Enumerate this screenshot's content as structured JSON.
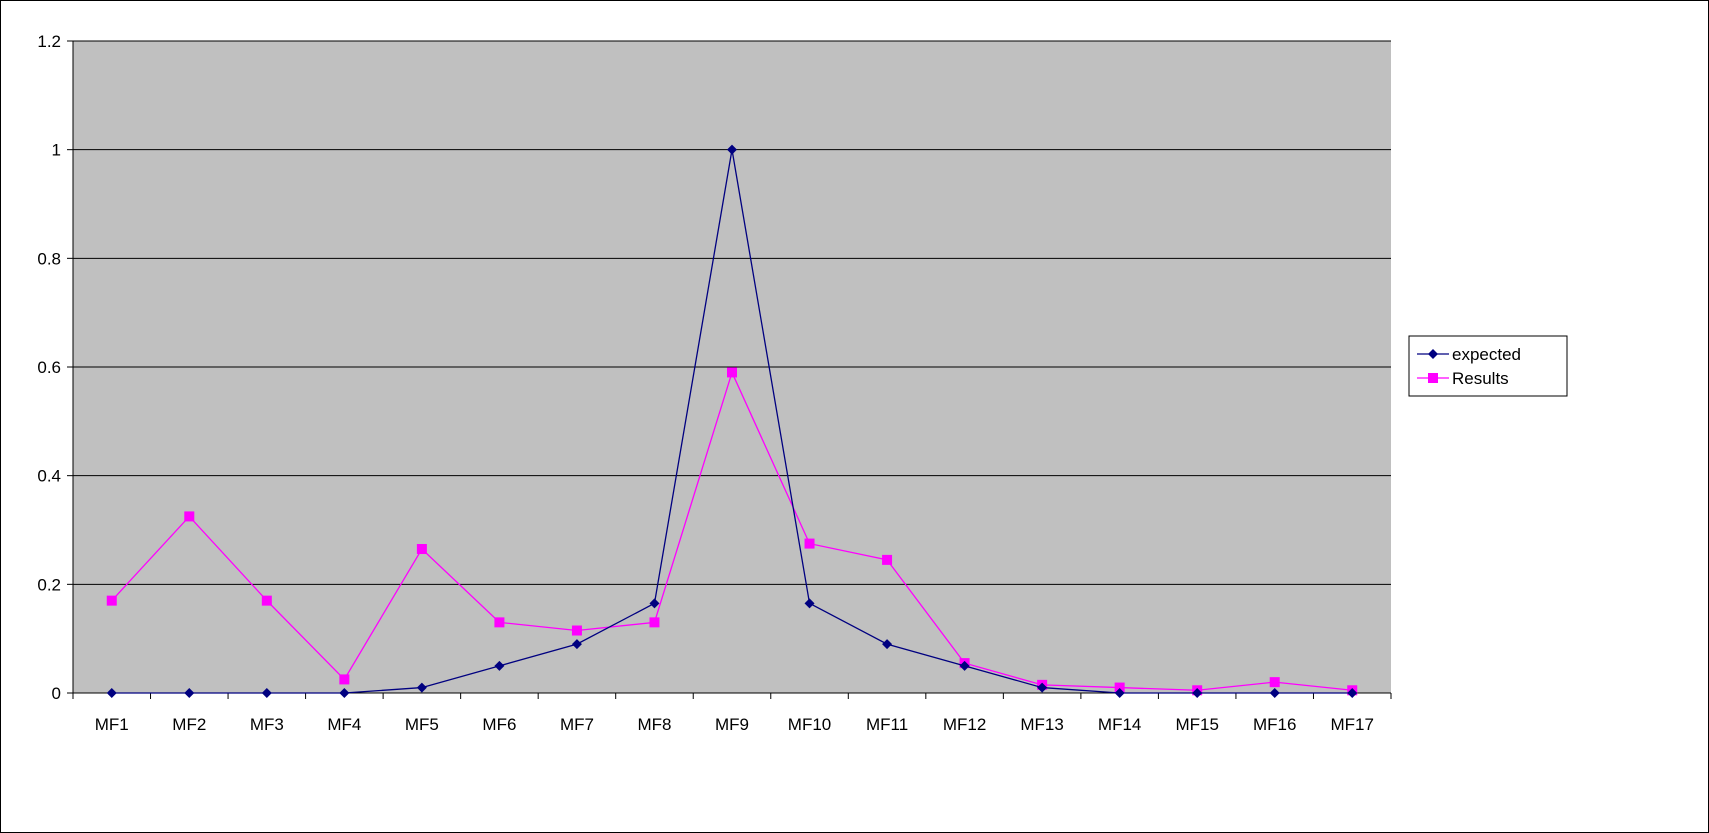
{
  "chart_data": {
    "type": "line",
    "title": "",
    "xlabel": "",
    "ylabel": "",
    "categories": [
      "MF1",
      "MF2",
      "MF3",
      "MF4",
      "MF5",
      "MF6",
      "MF7",
      "MF8",
      "MF9",
      "MF10",
      "MF11",
      "MF12",
      "MF13",
      "MF14",
      "MF15",
      "MF16",
      "MF17"
    ],
    "yticks": [
      "0",
      "0.2",
      "0.4",
      "0.6",
      "0.8",
      "1",
      "1.2"
    ],
    "ylim": [
      0,
      1.2
    ],
    "grid": true,
    "legend": "right",
    "plot_background": "#c0c0c0",
    "series": [
      {
        "name": "expected",
        "color": "#000080",
        "marker": "diamond",
        "values": [
          0,
          0,
          0,
          0,
          0.01,
          0.05,
          0.09,
          0.165,
          1,
          0.165,
          0.09,
          0.05,
          0.01,
          0,
          0,
          0,
          0
        ]
      },
      {
        "name": "Results",
        "color": "#ff00ff",
        "marker": "square",
        "values": [
          0.17,
          0.325,
          0.17,
          0.025,
          0.265,
          0.13,
          0.115,
          0.13,
          0.59,
          0.275,
          0.245,
          0.055,
          0.015,
          0.01,
          0.005,
          0.02,
          0.005
        ]
      }
    ]
  }
}
